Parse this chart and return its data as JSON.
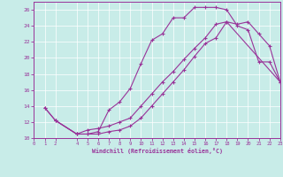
{
  "xlabel": "Windchill (Refroidissement éolien,°C)",
  "bg_color": "#c8ece8",
  "line_color": "#993399",
  "xlim": [
    0,
    23
  ],
  "ylim": [
    10,
    27
  ],
  "yticks": [
    10,
    12,
    14,
    16,
    18,
    20,
    22,
    24,
    26
  ],
  "xticks": [
    0,
    1,
    2,
    4,
    5,
    6,
    7,
    8,
    9,
    10,
    11,
    12,
    13,
    14,
    15,
    16,
    17,
    18,
    19,
    20,
    21,
    22,
    23
  ],
  "line1_x": [
    1,
    2,
    4,
    5,
    6,
    7,
    8,
    9,
    10,
    11,
    12,
    13,
    14,
    15,
    16,
    17,
    18,
    19,
    20,
    21,
    22,
    23
  ],
  "line1_y": [
    13.8,
    12.2,
    10.5,
    10.5,
    10.8,
    13.5,
    14.5,
    16.2,
    19.3,
    22.2,
    23.0,
    25.0,
    25.0,
    26.3,
    26.3,
    26.3,
    26.0,
    24.0,
    23.5,
    19.5,
    19.5,
    17.0
  ],
  "line2_x": [
    1,
    2,
    4,
    5,
    6,
    7,
    8,
    9,
    10,
    11,
    12,
    13,
    14,
    15,
    16,
    17,
    18,
    23
  ],
  "line2_y": [
    13.8,
    12.2,
    10.5,
    10.5,
    10.5,
    10.8,
    11.0,
    11.5,
    12.5,
    14.0,
    15.5,
    17.0,
    18.5,
    20.2,
    21.8,
    22.5,
    24.5,
    17.0
  ],
  "line3_x": [
    2,
    4,
    5,
    6,
    7,
    8,
    9,
    10,
    11,
    12,
    13,
    14,
    15,
    16,
    17,
    18,
    19,
    20,
    21,
    22,
    23
  ],
  "line3_y": [
    12.2,
    10.5,
    11.0,
    11.2,
    11.5,
    12.0,
    12.5,
    14.0,
    15.5,
    17.0,
    18.3,
    19.8,
    21.2,
    22.5,
    24.2,
    24.5,
    24.2,
    24.5,
    23.0,
    21.5,
    17.0
  ]
}
